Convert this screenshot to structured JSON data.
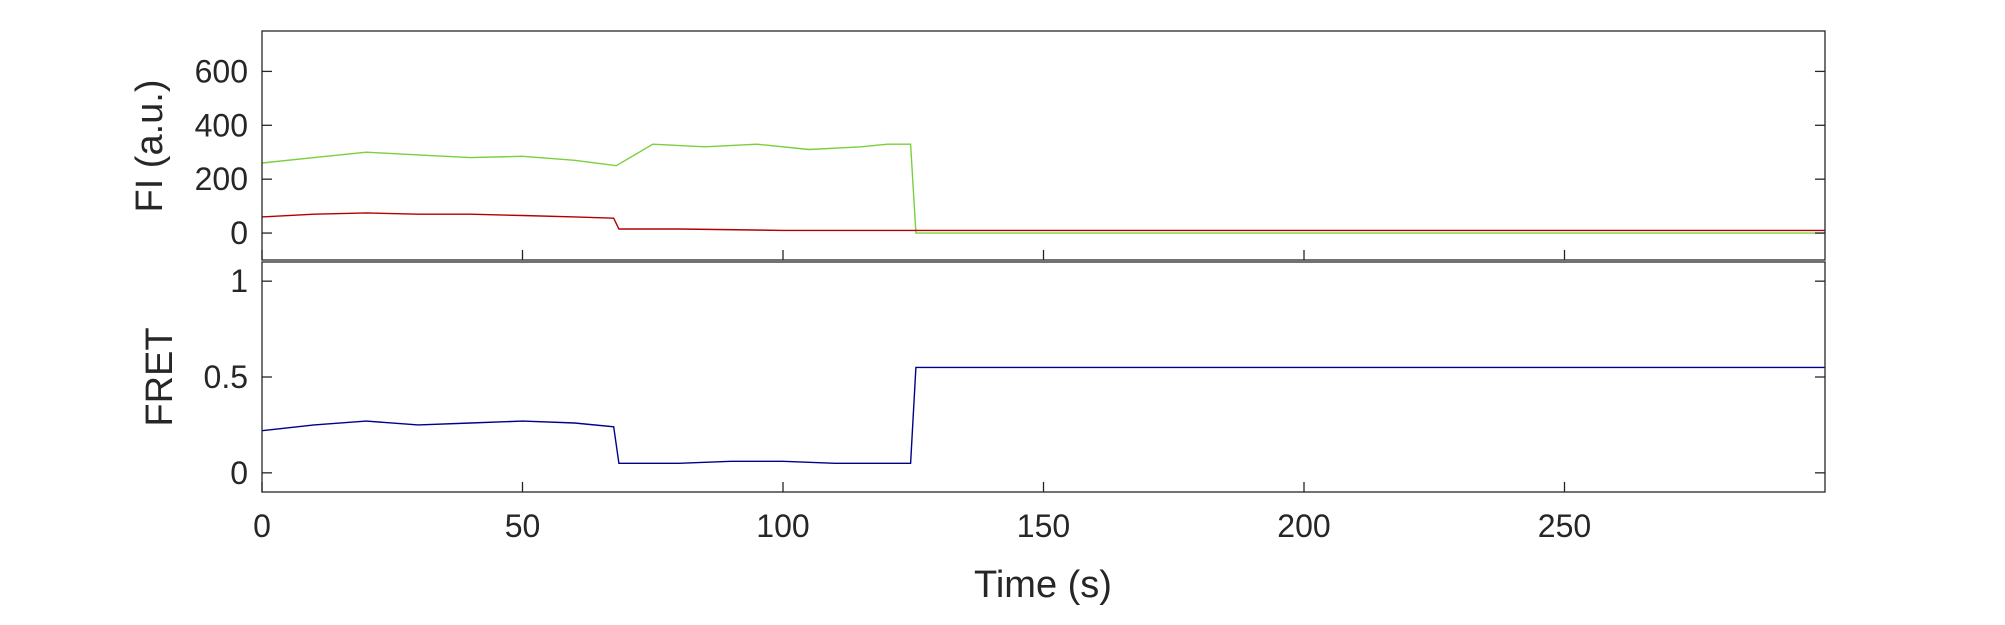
{
  "chart_data": [
    {
      "type": "line",
      "ylabel": "FI (a.u.)",
      "xlim": [
        0,
        300
      ],
      "ylim": [
        -100,
        750
      ],
      "yticks": [
        0,
        200,
        400,
        600
      ],
      "grid": false,
      "colors": {
        "donor": "#7ccf3b",
        "acceptor": "#b20000"
      },
      "series": [
        {
          "color": "#7ccf3b",
          "x": [
            0,
            10,
            20,
            30,
            40,
            50,
            60,
            68,
            75,
            85,
            95,
            105,
            115,
            120,
            124.5,
            125.5,
            150,
            200,
            250,
            300
          ],
          "y": [
            260,
            280,
            300,
            290,
            280,
            285,
            270,
            250,
            330,
            320,
            330,
            310,
            320,
            330,
            330,
            0,
            0,
            0,
            0,
            0
          ]
        },
        {
          "color": "#b20000",
          "x": [
            0,
            10,
            20,
            30,
            40,
            50,
            60,
            67.5,
            68.5,
            80,
            100,
            124.5,
            125.5,
            150,
            200,
            250,
            300
          ],
          "y": [
            60,
            70,
            75,
            70,
            70,
            65,
            60,
            55,
            15,
            15,
            10,
            10,
            10,
            10,
            10,
            10,
            10
          ]
        }
      ]
    },
    {
      "type": "line",
      "xlabel": "Time (s)",
      "ylabel": "FRET",
      "xlim": [
        0,
        300
      ],
      "ylim": [
        -0.1,
        1.1
      ],
      "xticks": [
        0,
        50,
        100,
        150,
        200,
        250
      ],
      "yticks": [
        0,
        0.5,
        1
      ],
      "grid": false,
      "series": [
        {
          "color": "#00008b",
          "x": [
            0,
            10,
            20,
            30,
            40,
            50,
            60,
            67.5,
            68.5,
            80,
            90,
            100,
            110,
            120,
            124.5,
            125.5,
            150,
            200,
            250,
            300
          ],
          "y": [
            0.22,
            0.25,
            0.27,
            0.25,
            0.26,
            0.27,
            0.26,
            0.24,
            0.05,
            0.05,
            0.06,
            0.06,
            0.05,
            0.05,
            0.05,
            0.55,
            0.55,
            0.55,
            0.55,
            0.55
          ]
        }
      ]
    }
  ]
}
